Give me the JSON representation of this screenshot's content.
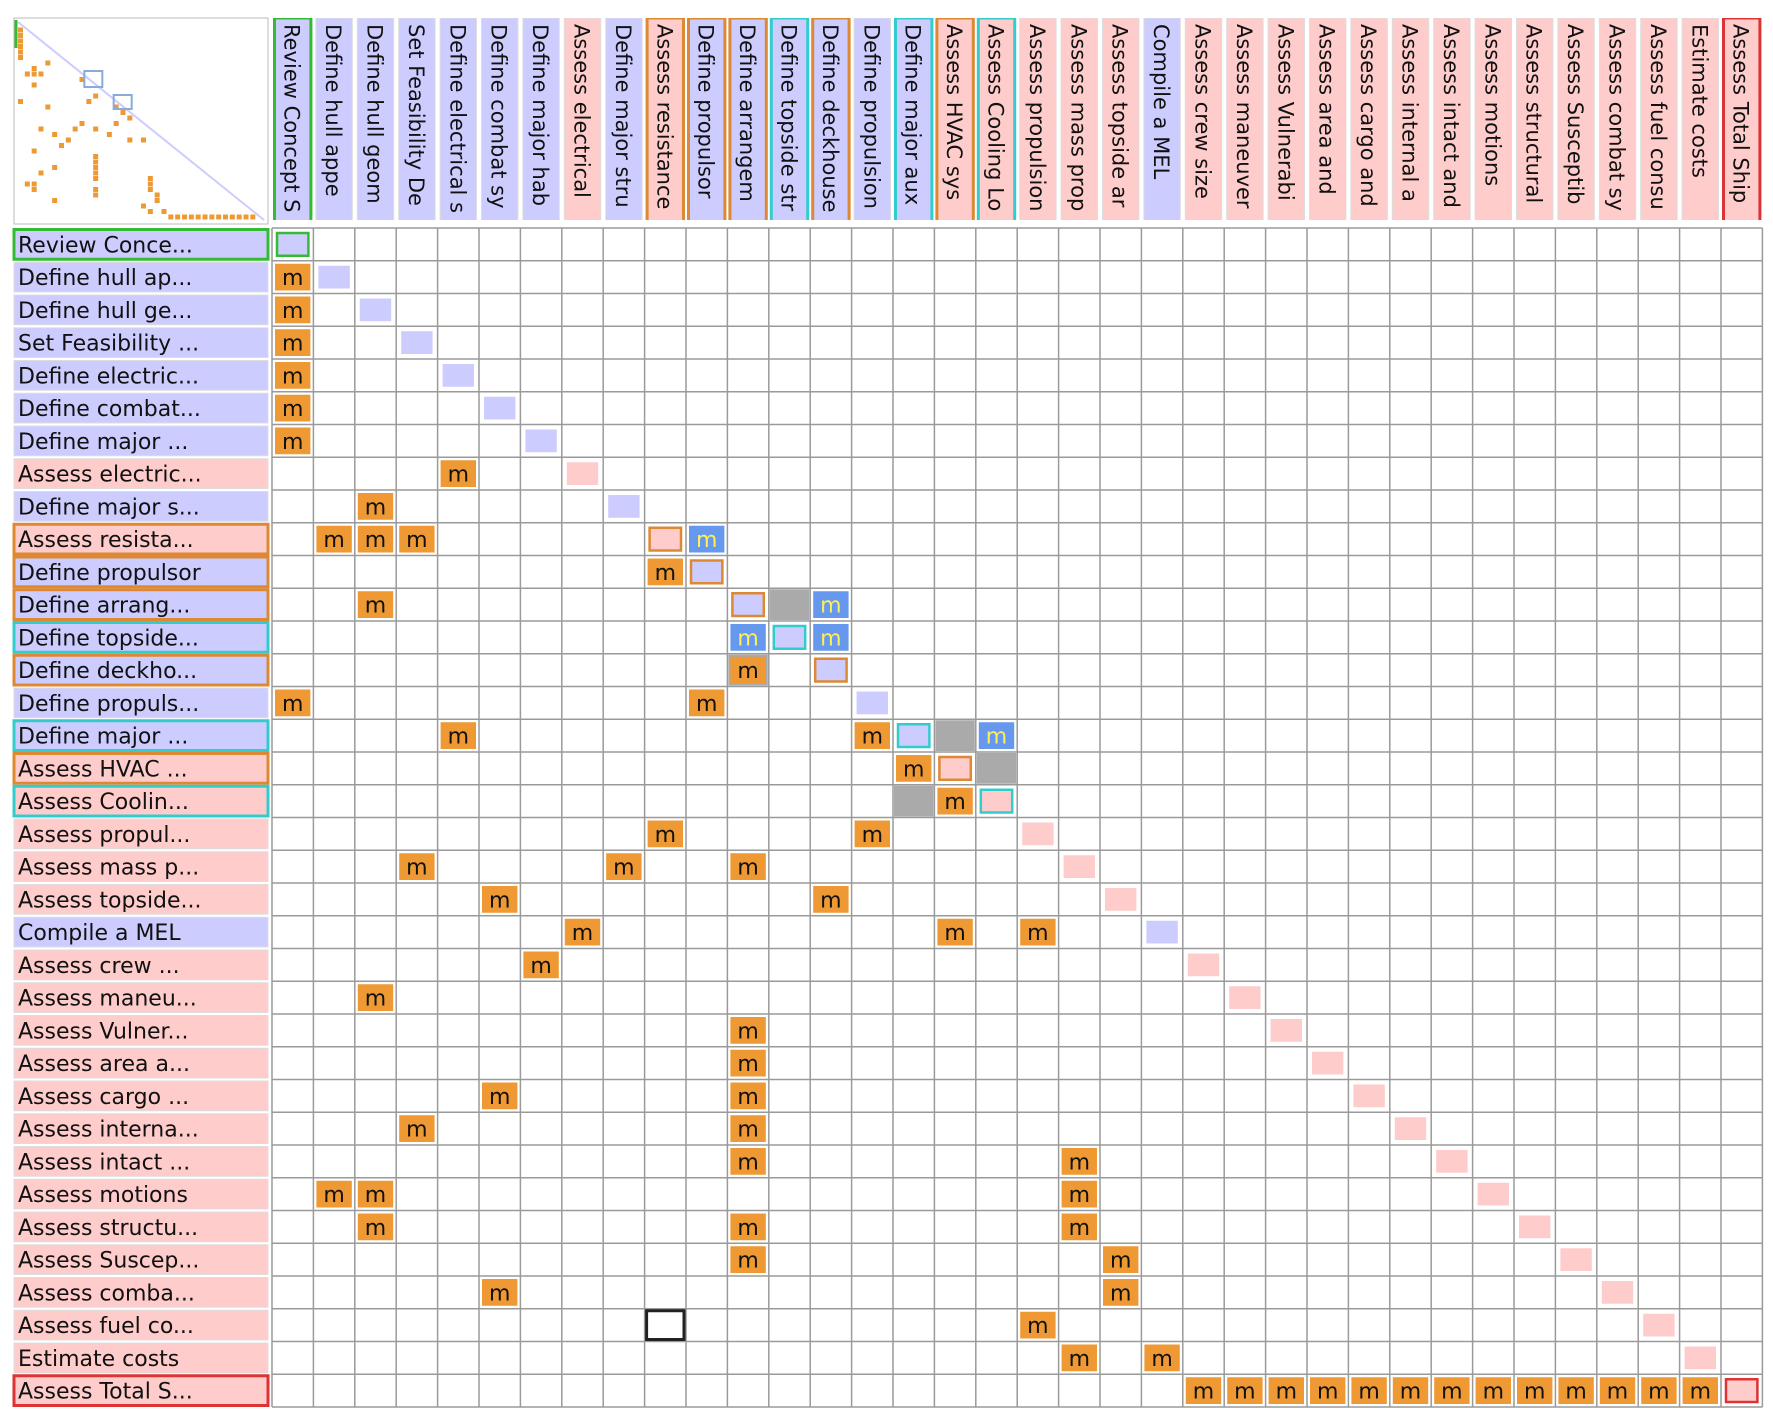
{
  "colors": {
    "lavender": "#ccccff",
    "pink": "#ffcccc",
    "orange": "#ee9933",
    "blue": "#6699ee",
    "grey": "#aaaaaa",
    "white": "#ffffff",
    "grid": "#9a9a9a",
    "border_green": "#33bb33",
    "border_orange": "#dd8833",
    "border_cyan": "#33cccc",
    "border_red": "#dd3333",
    "mark_text": "#111111",
    "mark_text_yellow": "#ffee55",
    "overview_line": "#ccccff",
    "overview_dot": "#ee9933",
    "overview_box": "#88aadd"
  },
  "mark_symbol": "m",
  "tasks": [
    {
      "row_label": "Review Conce...",
      "col_label": "Review Concept S",
      "color": "lavender",
      "border": "green"
    },
    {
      "row_label": "Define hull ap...",
      "col_label": "Define hull appe",
      "color": "lavender",
      "border": ""
    },
    {
      "row_label": "Define hull ge...",
      "col_label": "Define hull geom",
      "color": "lavender",
      "border": ""
    },
    {
      "row_label": "Set Feasibility ...",
      "col_label": "Set Feasibility De",
      "color": "lavender",
      "border": ""
    },
    {
      "row_label": "Define electric...",
      "col_label": "Define electrical s",
      "color": "lavender",
      "border": ""
    },
    {
      "row_label": "Define combat...",
      "col_label": "Define combat sy",
      "color": "lavender",
      "border": ""
    },
    {
      "row_label": "Define major ...",
      "col_label": "Define major hab",
      "color": "lavender",
      "border": ""
    },
    {
      "row_label": "Assess electric...",
      "col_label": "Assess electrical",
      "color": "pink",
      "border": ""
    },
    {
      "row_label": "Define major s...",
      "col_label": "Define major stru",
      "color": "lavender",
      "border": ""
    },
    {
      "row_label": "Assess resista...",
      "col_label": "Assess resistance",
      "color": "pink",
      "border": "orange"
    },
    {
      "row_label": "Define propulsor",
      "col_label": "Define propulsor",
      "color": "lavender",
      "border": "orange"
    },
    {
      "row_label": "Define arrang...",
      "col_label": "Define arrangem",
      "color": "lavender",
      "border": "orange"
    },
    {
      "row_label": "Define topside...",
      "col_label": "Define topside str",
      "color": "lavender",
      "border": "cyan"
    },
    {
      "row_label": "Define deckho...",
      "col_label": "Define deckhouse",
      "color": "lavender",
      "border": "orange"
    },
    {
      "row_label": "Define propuls...",
      "col_label": "Define propulsion",
      "color": "lavender",
      "border": ""
    },
    {
      "row_label": "Define major ...",
      "col_label": "Define major aux",
      "color": "lavender",
      "border": "cyan"
    },
    {
      "row_label": "Assess HVAC ...",
      "col_label": "Assess HVAC sys",
      "color": "pink",
      "border": "orange"
    },
    {
      "row_label": "Assess Coolin...",
      "col_label": "Assess Cooling Lo",
      "color": "pink",
      "border": "cyan"
    },
    {
      "row_label": "Assess propul...",
      "col_label": "Assess propulsion",
      "color": "pink",
      "border": ""
    },
    {
      "row_label": "Assess mass p...",
      "col_label": "Assess mass prop",
      "color": "pink",
      "border": ""
    },
    {
      "row_label": "Assess topside...",
      "col_label": "Assess topside ar",
      "color": "pink",
      "border": ""
    },
    {
      "row_label": "Compile a MEL",
      "col_label": "Compile a MEL",
      "color": "lavender",
      "border": ""
    },
    {
      "row_label": " Assess crew ...",
      "col_label": "Assess crew size",
      "color": "pink",
      "border": ""
    },
    {
      "row_label": "Assess maneu...",
      "col_label": "Assess maneuver",
      "color": "pink",
      "border": ""
    },
    {
      "row_label": "Assess Vulner...",
      "col_label": "Assess Vulnerabi",
      "color": "pink",
      "border": ""
    },
    {
      "row_label": "Assess area a...",
      "col_label": "Assess area and",
      "color": "pink",
      "border": ""
    },
    {
      "row_label": "Assess cargo ...",
      "col_label": "Assess cargo and",
      "color": "pink",
      "border": ""
    },
    {
      "row_label": "Assess interna...",
      "col_label": "Assess internal a",
      "color": "pink",
      "border": ""
    },
    {
      "row_label": "Assess intact ...",
      "col_label": "Assess intact and",
      "color": "pink",
      "border": ""
    },
    {
      "row_label": "Assess motions",
      "col_label": "Assess motions",
      "color": "pink",
      "border": ""
    },
    {
      "row_label": "Assess structu...",
      "col_label": "Assess structural",
      "color": "pink",
      "border": ""
    },
    {
      "row_label": "Assess Suscep...",
      "col_label": "Assess Susceptib",
      "color": "pink",
      "border": ""
    },
    {
      "row_label": "Assess comba...",
      "col_label": "Assess combat sy",
      "color": "pink",
      "border": ""
    },
    {
      "row_label": "Assess fuel co...",
      "col_label": "Assess fuel consu",
      "color": "pink",
      "border": ""
    },
    {
      "row_label": "Estimate costs",
      "col_label": "Estimate costs",
      "color": "pink",
      "border": ""
    },
    {
      "row_label": "Assess Total S...",
      "col_label": "Assess Total Ship",
      "color": "pink",
      "border": "red"
    }
  ],
  "marks": [
    [
      1,
      0
    ],
    [
      2,
      0
    ],
    [
      3,
      0
    ],
    [
      4,
      0
    ],
    [
      5,
      0
    ],
    [
      6,
      0
    ],
    [
      7,
      4
    ],
    [
      8,
      2
    ],
    [
      9,
      1
    ],
    [
      9,
      2
    ],
    [
      9,
      3
    ],
    [
      10,
      9
    ],
    [
      11,
      2
    ],
    [
      13,
      11
    ],
    [
      14,
      0
    ],
    [
      14,
      10
    ],
    [
      15,
      4
    ],
    [
      15,
      14
    ],
    [
      16,
      15
    ],
    [
      17,
      16
    ],
    [
      18,
      9
    ],
    [
      18,
      14
    ],
    [
      19,
      3
    ],
    [
      19,
      8
    ],
    [
      19,
      11
    ],
    [
      20,
      5
    ],
    [
      20,
      13
    ],
    [
      21,
      7
    ],
    [
      21,
      16
    ],
    [
      21,
      18
    ],
    [
      22,
      6
    ],
    [
      23,
      2
    ],
    [
      24,
      11
    ],
    [
      25,
      11
    ],
    [
      26,
      5
    ],
    [
      26,
      11
    ],
    [
      27,
      3
    ],
    [
      27,
      11
    ],
    [
      28,
      11
    ],
    [
      28,
      19
    ],
    [
      29,
      1
    ],
    [
      29,
      2
    ],
    [
      29,
      19
    ],
    [
      30,
      2
    ],
    [
      30,
      11
    ],
    [
      30,
      19
    ],
    [
      31,
      11
    ],
    [
      31,
      20
    ],
    [
      32,
      5
    ],
    [
      32,
      20
    ],
    [
      33,
      18
    ],
    [
      34,
      19
    ],
    [
      34,
      21
    ],
    [
      35,
      22
    ],
    [
      35,
      23
    ],
    [
      35,
      24
    ],
    [
      35,
      25
    ],
    [
      35,
      26
    ],
    [
      35,
      27
    ],
    [
      35,
      28
    ],
    [
      35,
      29
    ],
    [
      35,
      30
    ],
    [
      35,
      31
    ],
    [
      35,
      32
    ],
    [
      35,
      33
    ],
    [
      35,
      34
    ]
  ],
  "blue_marks": [
    [
      9,
      10
    ],
    [
      11,
      13
    ],
    [
      12,
      11
    ],
    [
      12,
      13
    ],
    [
      15,
      17
    ]
  ],
  "grey_cells": [
    [
      11,
      12
    ],
    [
      13,
      11
    ],
    [
      15,
      16
    ],
    [
      16,
      17
    ],
    [
      17,
      15
    ]
  ],
  "selected_cell": [
    33,
    9
  ]
}
